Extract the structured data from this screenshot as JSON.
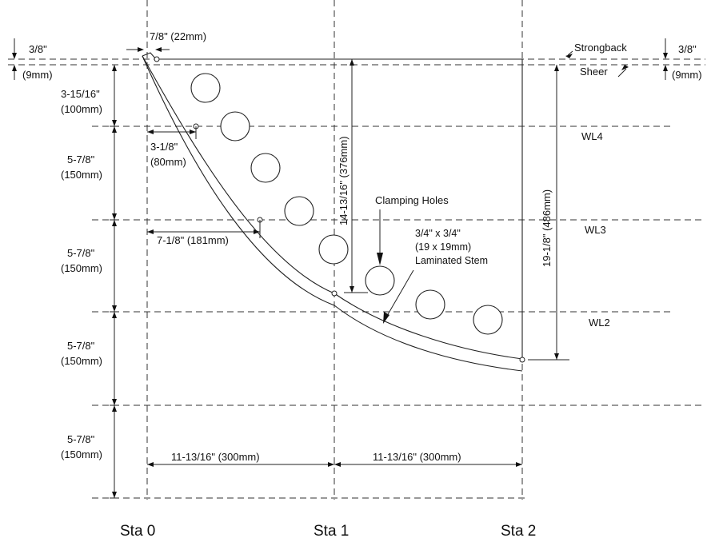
{
  "stations": [
    "Sta 0",
    "Sta 1",
    "Sta 2"
  ],
  "waterlines": [
    "WL4",
    "WL3",
    "WL2"
  ],
  "labels": {
    "strongback": "Strongback",
    "sheer": "Sheer",
    "clamping_holes": "Clamping Holes",
    "stem_size": "3/4\" x 3/4\"",
    "stem_size_mm": "(19 x 19mm)",
    "laminated_stem": "Laminated Stem"
  },
  "dimensions": {
    "top_offset_in": "3/8\"",
    "top_offset_mm": "(9mm)",
    "right_offset_in": "3/8\"",
    "right_offset_mm": "(9mm)",
    "stem_top_width": "7/8\" (22mm)",
    "first_spacing_in": "3-15/16\"",
    "first_spacing_mm": "(100mm)",
    "wl_spacing_in": "5-7/8\"",
    "wl_spacing_mm": "(150mm)",
    "wl4_offset_in": "3-1/8\"",
    "wl4_offset_mm": "(80mm)",
    "wl3_offset": "7-1/8\" (181mm)",
    "sta1_height": "14-13/16\" (376mm)",
    "sta2_height": "19-1/8\" (486mm)",
    "station_spacing": "11-13/16\" (300mm)"
  }
}
